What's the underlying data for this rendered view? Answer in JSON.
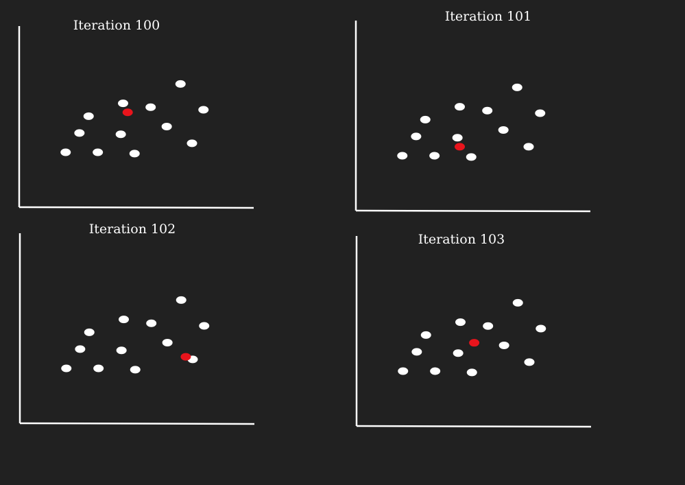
{
  "colors": {
    "background": "#212121",
    "axis": "#ffffff",
    "point": "#ffffff",
    "highlight": "#e8141c"
  },
  "panels": [
    {
      "title": "Iteration 100",
      "highlight": [
        3.2,
        4.8
      ]
    },
    {
      "title": "Iteration 101",
      "highlight": [
        3.0,
        2.4
      ]
    },
    {
      "title": "Iteration 102",
      "highlight": [
        5.7,
        2.6
      ]
    },
    {
      "title": "Iteration 103",
      "highlight": [
        3.6,
        3.9
      ]
    }
  ],
  "points": [
    [
      5.5,
      7.0
    ],
    [
      3.0,
      5.5
    ],
    [
      4.2,
      5.2
    ],
    [
      6.5,
      5.0
    ],
    [
      1.5,
      4.5
    ],
    [
      4.9,
      3.7
    ],
    [
      1.1,
      3.2
    ],
    [
      2.9,
      3.1
    ],
    [
      0.5,
      1.7
    ],
    [
      1.9,
      1.7
    ],
    [
      3.5,
      1.6
    ],
    [
      6.0,
      2.4
    ]
  ]
}
